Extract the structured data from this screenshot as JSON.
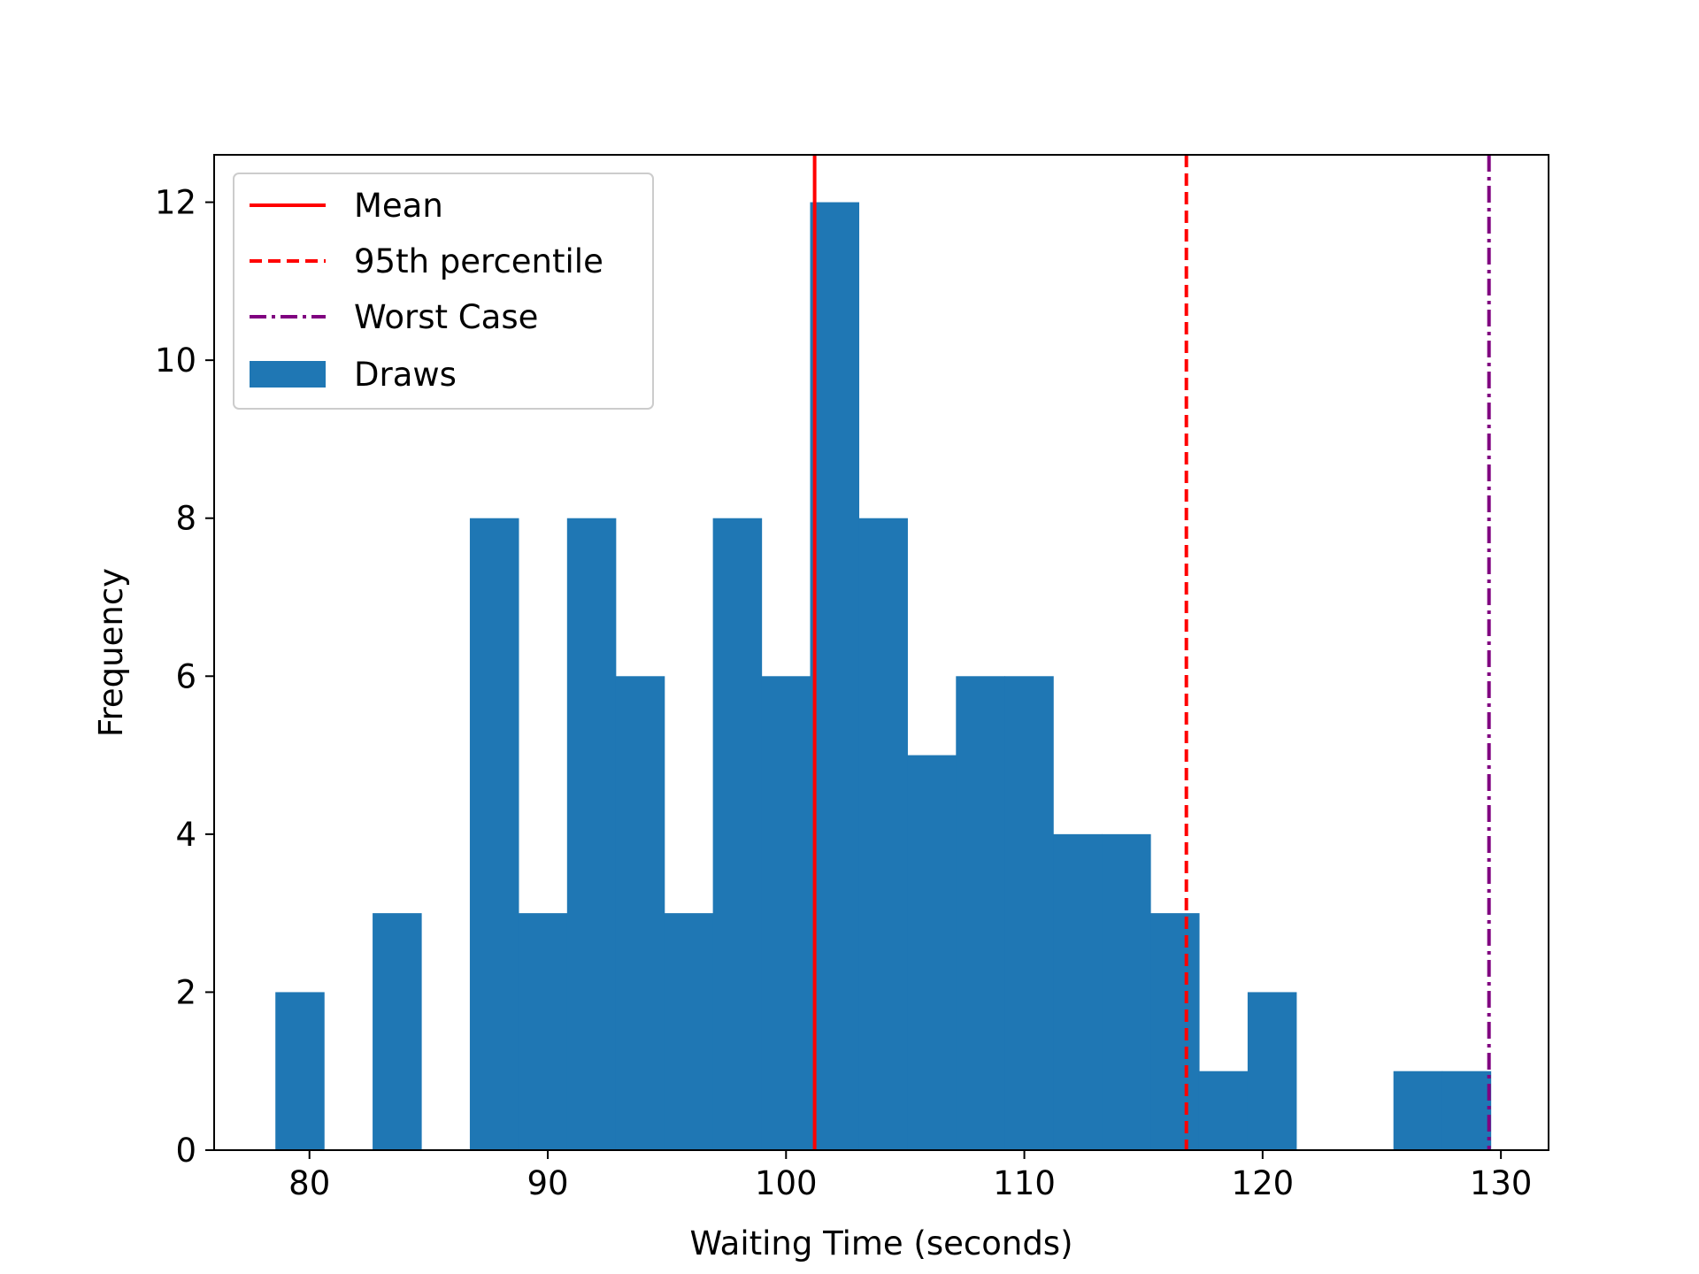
{
  "chart_data": {
    "type": "bar",
    "title": "",
    "xlabel": "Waiting Time (seconds)",
    "ylabel": "Frequency",
    "xlim": [
      76,
      132
    ],
    "ylim": [
      0,
      12.6
    ],
    "x_ticks": [
      80,
      90,
      100,
      110,
      120,
      130
    ],
    "y_ticks": [
      0,
      2,
      4,
      6,
      8,
      10,
      12
    ],
    "grid": false,
    "legend_position": "top-left",
    "bins": {
      "edges": [
        78.57,
        80.61,
        82.65,
        84.69,
        86.73,
        88.77,
        90.81,
        92.85,
        94.89,
        96.93,
        98.97,
        101.01,
        103.05,
        105.09,
        107.13,
        109.17,
        111.21,
        113.25,
        115.29,
        117.33,
        119.37,
        121.41,
        123.45,
        125.49,
        127.53,
        129.57
      ],
      "counts": [
        2,
        0,
        3,
        0,
        8,
        3,
        8,
        6,
        3,
        8,
        6,
        12,
        8,
        5,
        6,
        6,
        4,
        4,
        3,
        1,
        2,
        0,
        0,
        1,
        1
      ]
    },
    "series": [
      {
        "name": "Draws",
        "kind": "histogram",
        "color": "#1f77b4"
      },
      {
        "name": "Mean",
        "kind": "vline",
        "x": 101.2,
        "color": "#ff0000",
        "linestyle": "solid"
      },
      {
        "name": "95th percentile",
        "kind": "vline",
        "x": 116.8,
        "color": "#ff0000",
        "linestyle": "dashed"
      },
      {
        "name": "Worst Case",
        "kind": "vline",
        "x": 129.5,
        "color": "#800080",
        "linestyle": "dashdot"
      }
    ],
    "legend": [
      "Mean",
      "95th percentile",
      "Worst Case",
      "Draws"
    ]
  }
}
